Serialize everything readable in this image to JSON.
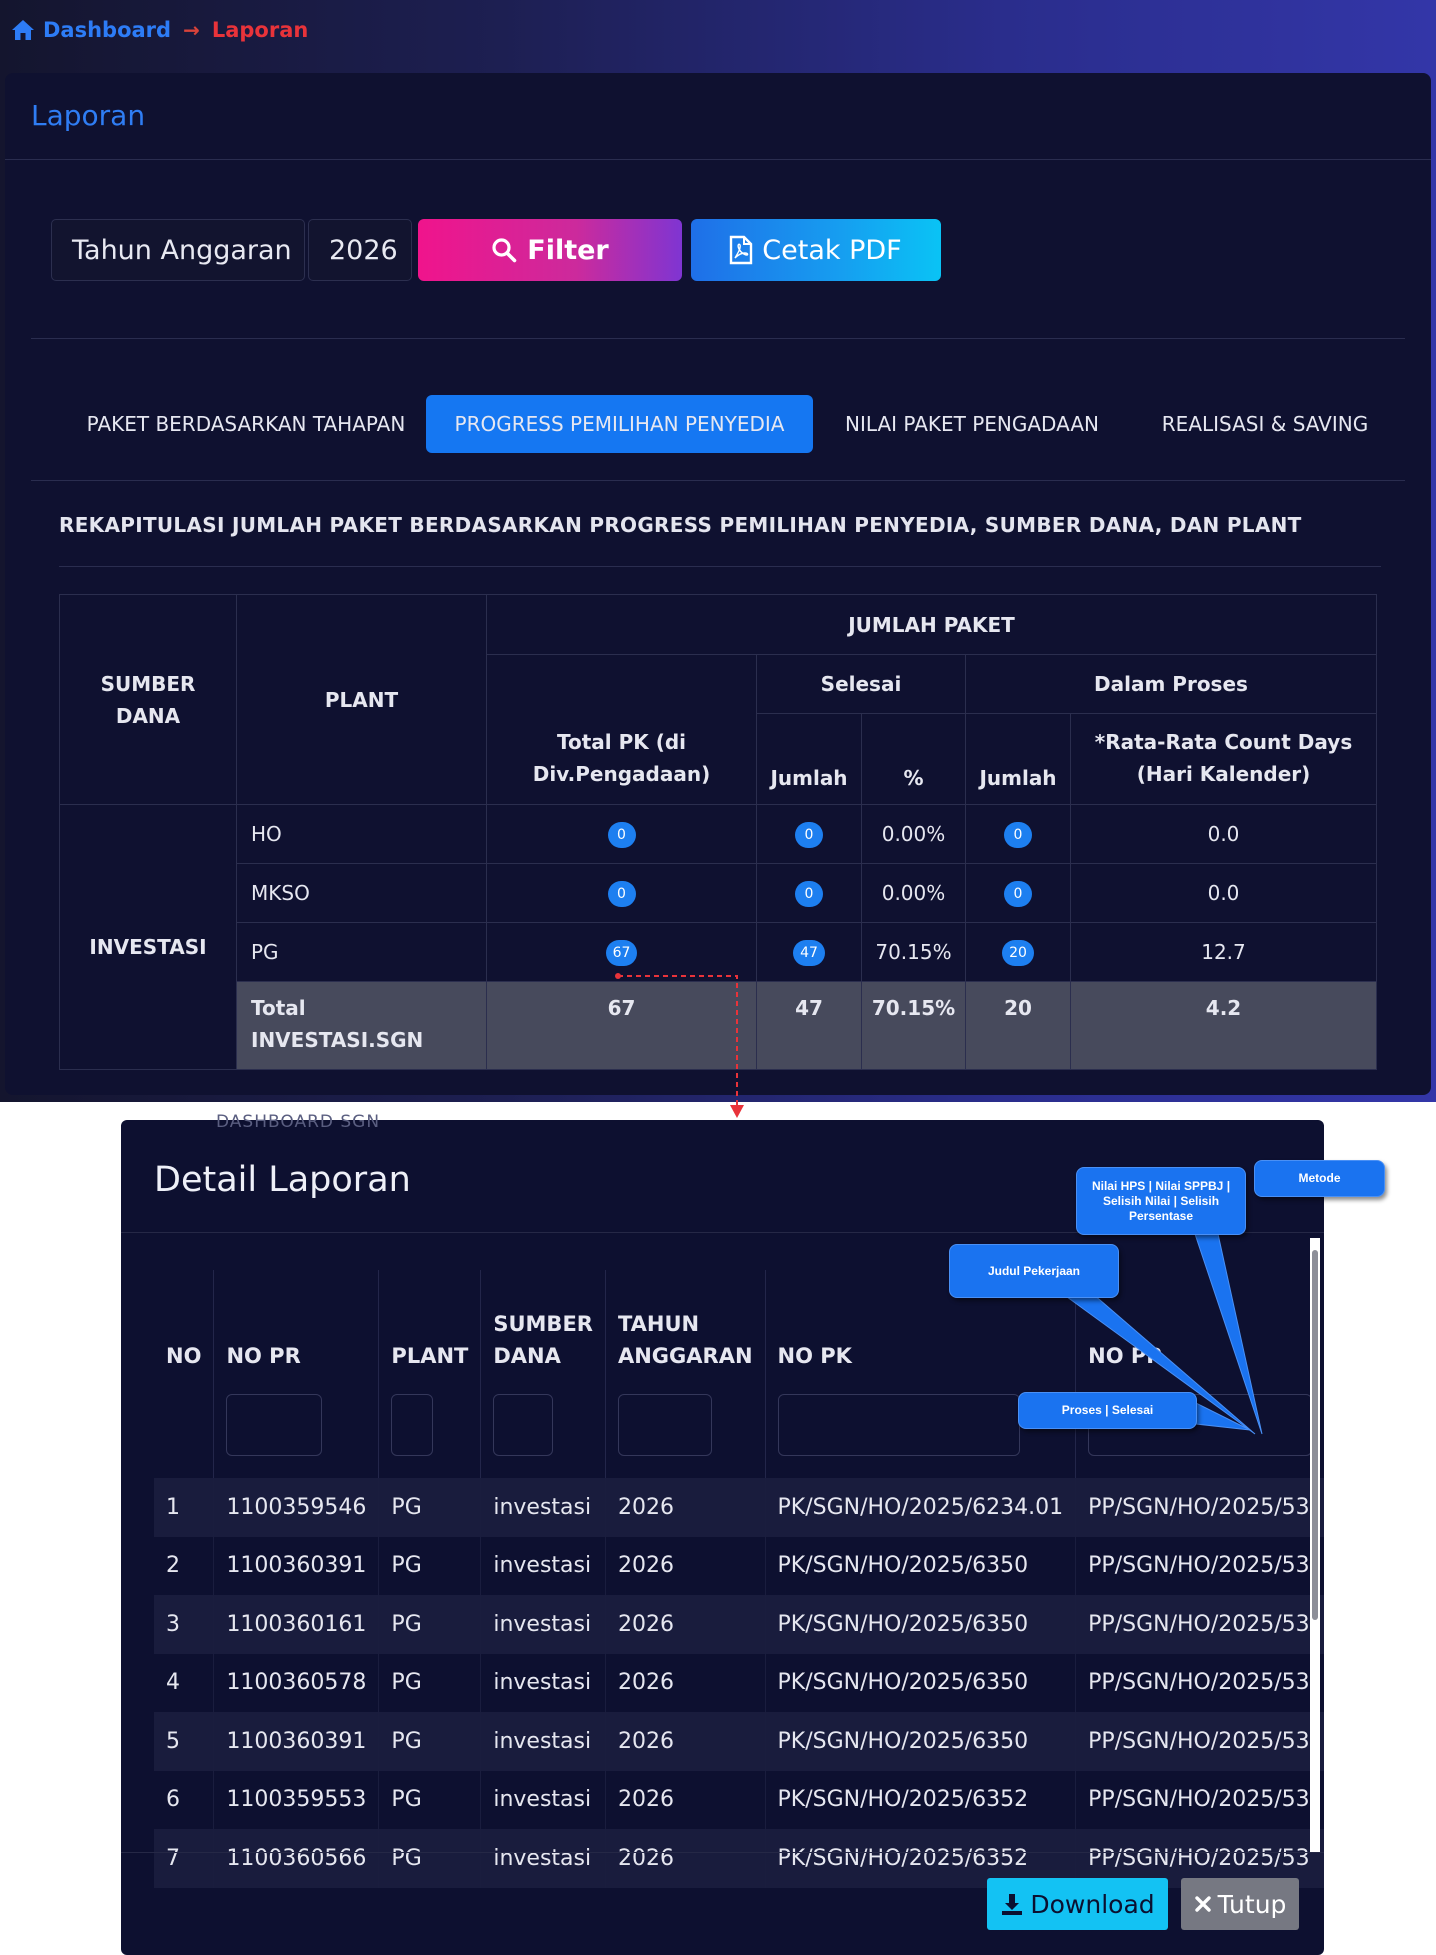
{
  "breadcrumb": {
    "home": "Dashboard",
    "arrow": "→",
    "current": "Laporan"
  },
  "card": {
    "title": "Laporan"
  },
  "filter": {
    "label": "Tahun Anggaran",
    "year": "2026",
    "filter_label": "Filter",
    "pdf_label": "Cetak PDF"
  },
  "tabs": [
    {
      "label": "PAKET BERDASARKAN TAHAPAN",
      "active": false
    },
    {
      "label": "PROGRESS PEMILIHAN PENYEDIA",
      "active": true
    },
    {
      "label": "NILAI PAKET PENGADAAN",
      "active": false
    },
    {
      "label": "REALISASI & SAVING",
      "active": false
    }
  ],
  "section_title": "REKAPITULASI JUMLAH PAKET BERDASARKAN PROGRESS PEMILIHAN PENYEDIA, SUMBER DANA, DAN PLANT",
  "summary_table": {
    "headers": {
      "sumber_dana": "SUMBER DANA",
      "plant": "PLANT",
      "jumlah_paket": "JUMLAH PAKET",
      "selesai": "Selesai",
      "dalam_proses": "Dalam Proses",
      "total_pk": "Total PK (di Div.Pengadaan)",
      "jumlah": "Jumlah",
      "percent": "%",
      "jumlah2": "Jumlah",
      "rata_rata": "*Rata-Rata Count Days (Hari Kalender)"
    },
    "group": "INVESTASI",
    "rows": [
      {
        "plant": "HO",
        "total_pk": "0",
        "selesai_jumlah": "0",
        "selesai_pct": "0.00%",
        "proses_jumlah": "0",
        "rata_rata": "0.0"
      },
      {
        "plant": "MKSO",
        "total_pk": "0",
        "selesai_jumlah": "0",
        "selesai_pct": "0.00%",
        "proses_jumlah": "0",
        "rata_rata": "0.0"
      },
      {
        "plant": "PG",
        "total_pk": "67",
        "selesai_jumlah": "47",
        "selesai_pct": "70.15%",
        "proses_jumlah": "20",
        "rata_rata": "12.7"
      }
    ],
    "total": {
      "label": "Total INVESTASI.SGN",
      "total_pk": "67",
      "selesai_jumlah": "47",
      "selesai_pct": "70.15%",
      "proses_jumlah": "20",
      "rata_rata": "4.2"
    }
  },
  "modal": {
    "ghost_text": "DASHBOARD SGN",
    "title": "Detail Laporan",
    "columns": [
      "NO",
      "NO PR",
      "PLANT",
      "SUMBER DANA",
      "TAHUN ANGGARAN",
      "NO PK",
      "NO PP"
    ],
    "rows": [
      {
        "no": "1",
        "no_pr": "1100359546",
        "plant": "PG",
        "sumber_dana": "investasi",
        "tahun": "2026",
        "no_pk": "PK/SGN/HO/2025/6234.01",
        "no_pp": "PP/SGN/HO/2025/53"
      },
      {
        "no": "2",
        "no_pr": "1100360391",
        "plant": "PG",
        "sumber_dana": "investasi",
        "tahun": "2026",
        "no_pk": "PK/SGN/HO/2025/6350",
        "no_pp": "PP/SGN/HO/2025/53"
      },
      {
        "no": "3",
        "no_pr": "1100360161",
        "plant": "PG",
        "sumber_dana": "investasi",
        "tahun": "2026",
        "no_pk": "PK/SGN/HO/2025/6350",
        "no_pp": "PP/SGN/HO/2025/53"
      },
      {
        "no": "4",
        "no_pr": "1100360578",
        "plant": "PG",
        "sumber_dana": "investasi",
        "tahun": "2026",
        "no_pk": "PK/SGN/HO/2025/6350",
        "no_pp": "PP/SGN/HO/2025/53"
      },
      {
        "no": "5",
        "no_pr": "1100360391",
        "plant": "PG",
        "sumber_dana": "investasi",
        "tahun": "2026",
        "no_pk": "PK/SGN/HO/2025/6350",
        "no_pp": "PP/SGN/HO/2025/53"
      },
      {
        "no": "6",
        "no_pr": "1100359553",
        "plant": "PG",
        "sumber_dana": "investasi",
        "tahun": "2026",
        "no_pk": "PK/SGN/HO/2025/6352",
        "no_pp": "PP/SGN/HO/2025/53"
      },
      {
        "no": "7",
        "no_pr": "1100360566",
        "plant": "PG",
        "sumber_dana": "investasi",
        "tahun": "2026",
        "no_pk": "PK/SGN/HO/2025/6352",
        "no_pp": "PP/SGN/HO/2025/53"
      }
    ],
    "download_label": "Download",
    "close_label": "Tutup"
  },
  "callouts": {
    "nilai": "Nilai HPS | Nilai SPPBJ | Selisih Nilai | Selisih Persentase",
    "metode": "Metode",
    "judul": "Judul Pekerjaan",
    "proses": "Proses | Selesai"
  }
}
